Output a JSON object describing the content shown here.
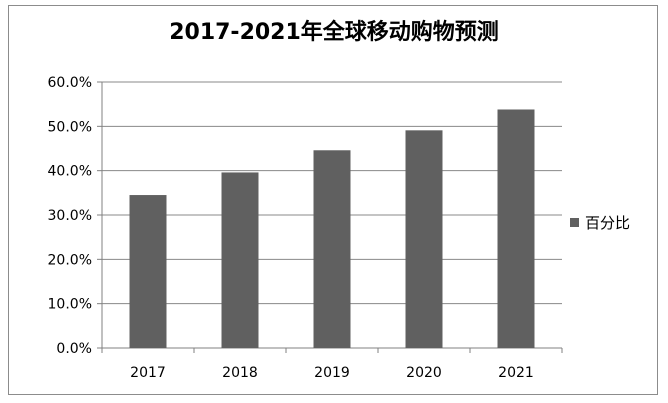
{
  "chart_data": {
    "type": "bar",
    "title": "2017-2021年全球移动购物预测",
    "categories": [
      "2017",
      "2018",
      "2019",
      "2020",
      "2021"
    ],
    "series": [
      {
        "name": "百分比",
        "values": [
          34.5,
          39.6,
          44.6,
          49.1,
          53.8
        ]
      }
    ],
    "ylim": [
      0,
      60
    ],
    "yticks": [
      "0.0%",
      "10.0%",
      "20.0%",
      "30.0%",
      "40.0%",
      "50.0%",
      "60.0%"
    ],
    "grid": true,
    "legend": "right",
    "bar_color": "#606060",
    "grid_color": "#888888"
  }
}
